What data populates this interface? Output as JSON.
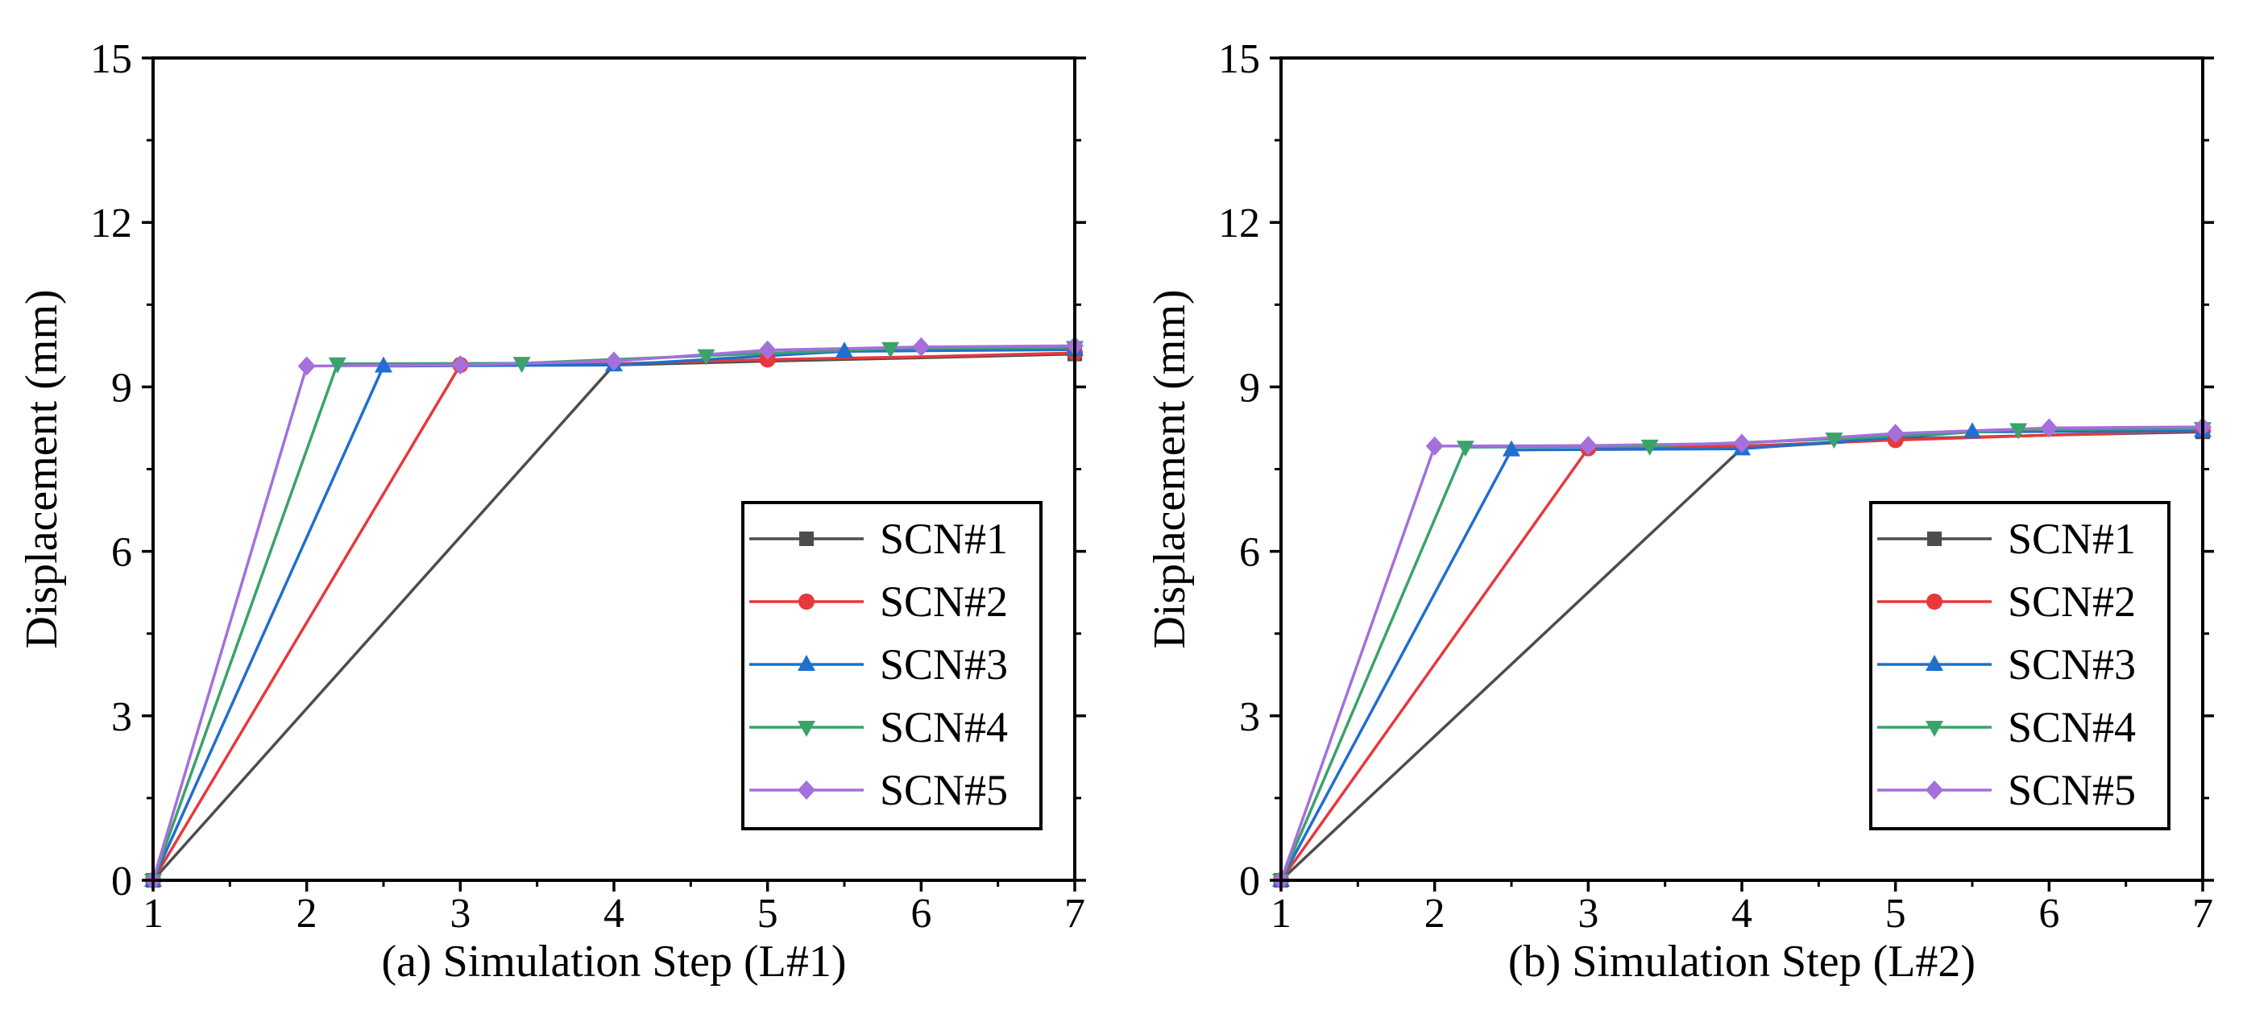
{
  "figure": {
    "background": "#ffffff"
  },
  "series_styles": [
    {
      "name": "SCN#1",
      "color": "#4d4d4d",
      "marker": "square"
    },
    {
      "name": "SCN#2",
      "color": "#e8383b",
      "marker": "circle"
    },
    {
      "name": "SCN#3",
      "color": "#1f6fcf",
      "marker": "triangle-up"
    },
    {
      "name": "SCN#4",
      "color": "#3aa36a",
      "marker": "triangle-down"
    },
    {
      "name": "SCN#5",
      "color": "#a56fdc",
      "marker": "diamond"
    }
  ],
  "chart_data": [
    {
      "type": "line",
      "panel": "a",
      "xlabel": "(a) Simulation Step (L#1)",
      "ylabel": "Displacement (mm)",
      "xlim": [
        1,
        7
      ],
      "ylim": [
        0,
        15
      ],
      "xticks": [
        1,
        2,
        3,
        4,
        5,
        6,
        7
      ],
      "yticks": [
        0,
        3,
        6,
        9,
        12,
        15
      ],
      "legend": "bottom-right",
      "series": [
        {
          "name": "SCN#1",
          "x": [
            1,
            4,
            5,
            6,
            7
          ],
          "y": [
            0,
            9.4,
            9.47,
            9.53,
            9.6
          ],
          "markers_x": [
            1,
            7
          ],
          "markers_y": [
            0,
            9.6
          ]
        },
        {
          "name": "SCN#2",
          "x": [
            1,
            3,
            4,
            5,
            6,
            7
          ],
          "y": [
            0,
            9.4,
            9.42,
            9.5,
            9.55,
            9.62
          ],
          "markers_x": [
            1,
            3,
            5,
            7
          ],
          "markers_y": [
            0,
            9.4,
            9.5,
            9.62
          ]
        },
        {
          "name": "SCN#3",
          "x": [
            1,
            2.5,
            4,
            5.5,
            7
          ],
          "y": [
            0,
            9.38,
            9.4,
            9.65,
            9.68
          ],
          "markers_x": [
            1,
            2.5,
            4,
            5.5,
            7
          ],
          "markers_y": [
            0,
            9.38,
            9.4,
            9.65,
            9.68
          ]
        },
        {
          "name": "SCN#4",
          "x": [
            1,
            2.2,
            3.4,
            4.6,
            5.8,
            7
          ],
          "y": [
            0,
            9.42,
            9.43,
            9.57,
            9.7,
            9.72
          ],
          "markers_x": [
            1,
            2.2,
            3.4,
            4.6,
            5.8,
            7
          ],
          "markers_y": [
            0,
            9.42,
            9.43,
            9.57,
            9.7,
            9.72
          ]
        },
        {
          "name": "SCN#5",
          "x": [
            1,
            2,
            3,
            4,
            5,
            6,
            7
          ],
          "y": [
            0,
            9.38,
            9.4,
            9.47,
            9.67,
            9.73,
            9.75
          ],
          "markers_x": [
            1,
            2,
            3,
            4,
            5,
            6,
            7
          ],
          "markers_y": [
            0,
            9.38,
            9.4,
            9.47,
            9.67,
            9.73,
            9.75
          ]
        }
      ]
    },
    {
      "type": "line",
      "panel": "b",
      "xlabel": "(b) Simulation Step (L#2)",
      "ylabel": "Displacement (mm)",
      "xlim": [
        1,
        7
      ],
      "ylim": [
        0,
        15
      ],
      "xticks": [
        1,
        2,
        3,
        4,
        5,
        6,
        7
      ],
      "yticks": [
        0,
        3,
        6,
        9,
        12,
        15
      ],
      "legend": "bottom-right",
      "series": [
        {
          "name": "SCN#1",
          "x": [
            1,
            4,
            5,
            6,
            7
          ],
          "y": [
            0,
            7.88,
            8.05,
            8.12,
            8.18
          ],
          "markers_x": [
            1,
            7
          ],
          "markers_y": [
            0,
            8.18
          ]
        },
        {
          "name": "SCN#2",
          "x": [
            1,
            3,
            4,
            5,
            6,
            7
          ],
          "y": [
            0,
            7.88,
            7.92,
            8.03,
            8.12,
            8.2
          ],
          "markers_x": [
            1,
            3,
            5,
            7
          ],
          "markers_y": [
            0,
            7.88,
            8.03,
            8.2
          ]
        },
        {
          "name": "SCN#3",
          "x": [
            1,
            2.5,
            4,
            5.5,
            7
          ],
          "y": [
            0,
            7.85,
            7.87,
            8.18,
            8.2
          ],
          "markers_x": [
            1,
            2.5,
            4,
            5.5,
            7
          ],
          "markers_y": [
            0,
            7.85,
            7.87,
            8.18,
            8.2
          ]
        },
        {
          "name": "SCN#4",
          "x": [
            1,
            2.2,
            3.4,
            4.6,
            5.8,
            7
          ],
          "y": [
            0,
            7.9,
            7.92,
            8.05,
            8.22,
            8.24
          ],
          "markers_x": [
            1,
            2.2,
            3.4,
            4.6,
            5.8,
            7
          ],
          "markers_y": [
            0,
            7.9,
            7.92,
            8.05,
            8.22,
            8.24
          ]
        },
        {
          "name": "SCN#5",
          "x": [
            1,
            2,
            3,
            4,
            5,
            6,
            7
          ],
          "y": [
            0,
            7.92,
            7.93,
            7.97,
            8.15,
            8.25,
            8.27
          ],
          "markers_x": [
            1,
            2,
            3,
            4,
            5,
            6,
            7
          ],
          "markers_y": [
            0,
            7.92,
            7.93,
            7.97,
            8.15,
            8.25,
            8.27
          ]
        }
      ]
    }
  ]
}
